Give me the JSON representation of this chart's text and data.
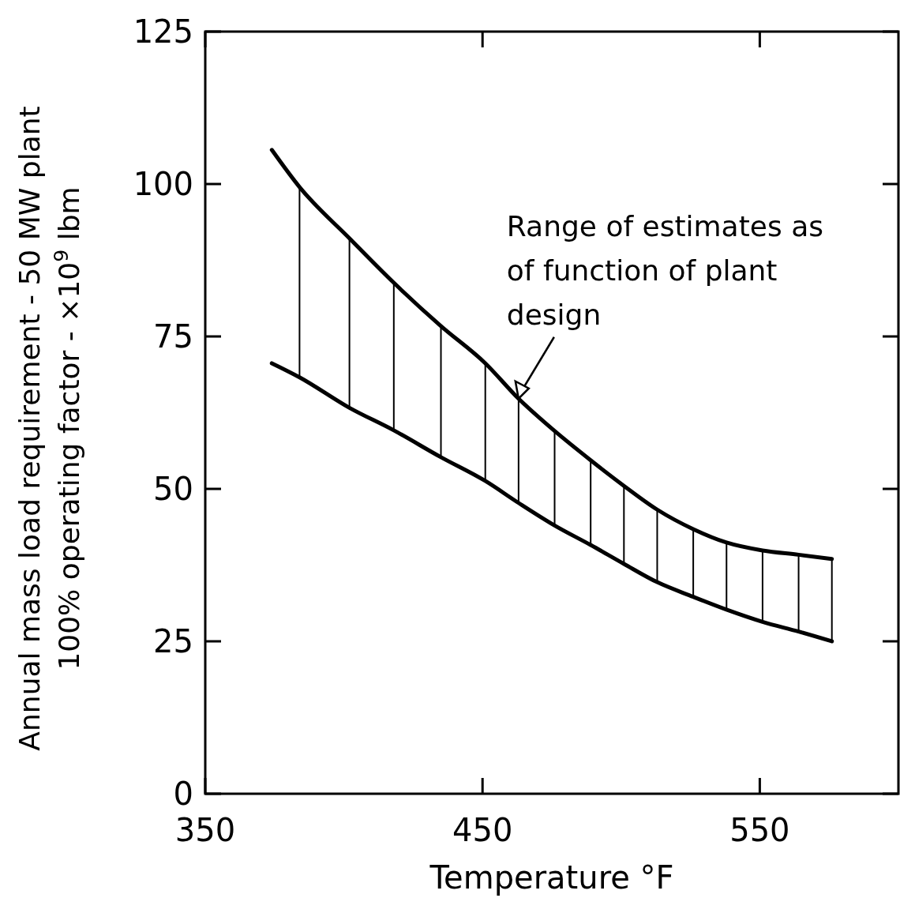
{
  "chart_data": {
    "type": "line",
    "xlabel": "Temperature °F",
    "ylabel": "Annual mass load requirement - 50 MW plant\n100% operating factor - ×10$^{9}$ lbm",
    "x": [
      374,
      384,
      402,
      418,
      435,
      451,
      463,
      476,
      489,
      501,
      513,
      526,
      538,
      551,
      564,
      576
    ],
    "series": [
      {
        "color": "#000000",
        "values": [
          105.6,
          99.5,
          91.1,
          83.8,
          76.7,
          70.6,
          64.8,
          59.5,
          54.7,
          50.5,
          46.6,
          43.4,
          41.2,
          39.9,
          39.2,
          38.5
        ]
      },
      {
        "color": "#000000",
        "values": [
          70.6,
          68.3,
          63.3,
          59.6,
          55.2,
          51.3,
          47.7,
          44.0,
          40.8,
          37.7,
          34.7,
          32.3,
          30.2,
          28.2,
          26.6,
          25.0
        ]
      }
    ],
    "xlim": [
      350,
      600
    ],
    "xticks": [
      350,
      450,
      550
    ],
    "ylim": [
      0,
      125
    ],
    "yticks": [
      0,
      25,
      50,
      75,
      100,
      125
    ],
    "grid": false,
    "marker": "none",
    "line_style": "solid",
    "annotations": [
      {
        "text": "Range of estimates as\nof function of plant\ndesign",
        "x": 463,
        "y": 64.8
      }
    ]
  }
}
